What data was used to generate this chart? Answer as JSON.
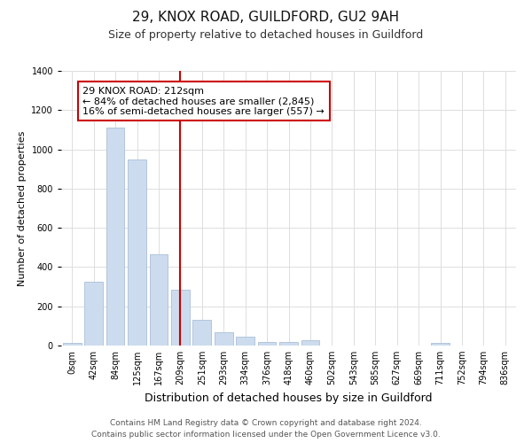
{
  "title1": "29, KNOX ROAD, GUILDFORD, GU2 9AH",
  "title2": "Size of property relative to detached houses in Guildford",
  "xlabel": "Distribution of detached houses by size in Guildford",
  "ylabel": "Number of detached properties",
  "categories": [
    "0sqm",
    "42sqm",
    "84sqm",
    "125sqm",
    "167sqm",
    "209sqm",
    "251sqm",
    "293sqm",
    "334sqm",
    "376sqm",
    "418sqm",
    "460sqm",
    "502sqm",
    "543sqm",
    "585sqm",
    "627sqm",
    "669sqm",
    "711sqm",
    "752sqm",
    "794sqm",
    "836sqm"
  ],
  "values": [
    15,
    325,
    1110,
    950,
    465,
    285,
    130,
    70,
    45,
    20,
    20,
    25,
    0,
    0,
    0,
    0,
    0,
    15,
    0,
    0,
    0
  ],
  "bar_color": "#ccdcee",
  "bar_edge_color": "#aabfd8",
  "vline_color": "#cc0000",
  "vline_pos": 5,
  "annotation_text": "29 KNOX ROAD: 212sqm\n← 84% of detached houses are smaller (2,845)\n16% of semi-detached houses are larger (557) →",
  "annotation_box_facecolor": "#ffffff",
  "annotation_box_edgecolor": "#cc0000",
  "ylim": [
    0,
    1400
  ],
  "yticks": [
    0,
    200,
    400,
    600,
    800,
    1000,
    1200,
    1400
  ],
  "footnote1": "Contains HM Land Registry data © Crown copyright and database right 2024.",
  "footnote2": "Contains public sector information licensed under the Open Government Licence v3.0.",
  "bg_color": "#ffffff",
  "plot_bg_color": "#ffffff",
  "grid_color": "#dddddd",
  "title1_fontsize": 11,
  "title2_fontsize": 9,
  "annotation_fontsize": 8,
  "tick_fontsize": 7,
  "ylabel_fontsize": 8,
  "xlabel_fontsize": 9
}
